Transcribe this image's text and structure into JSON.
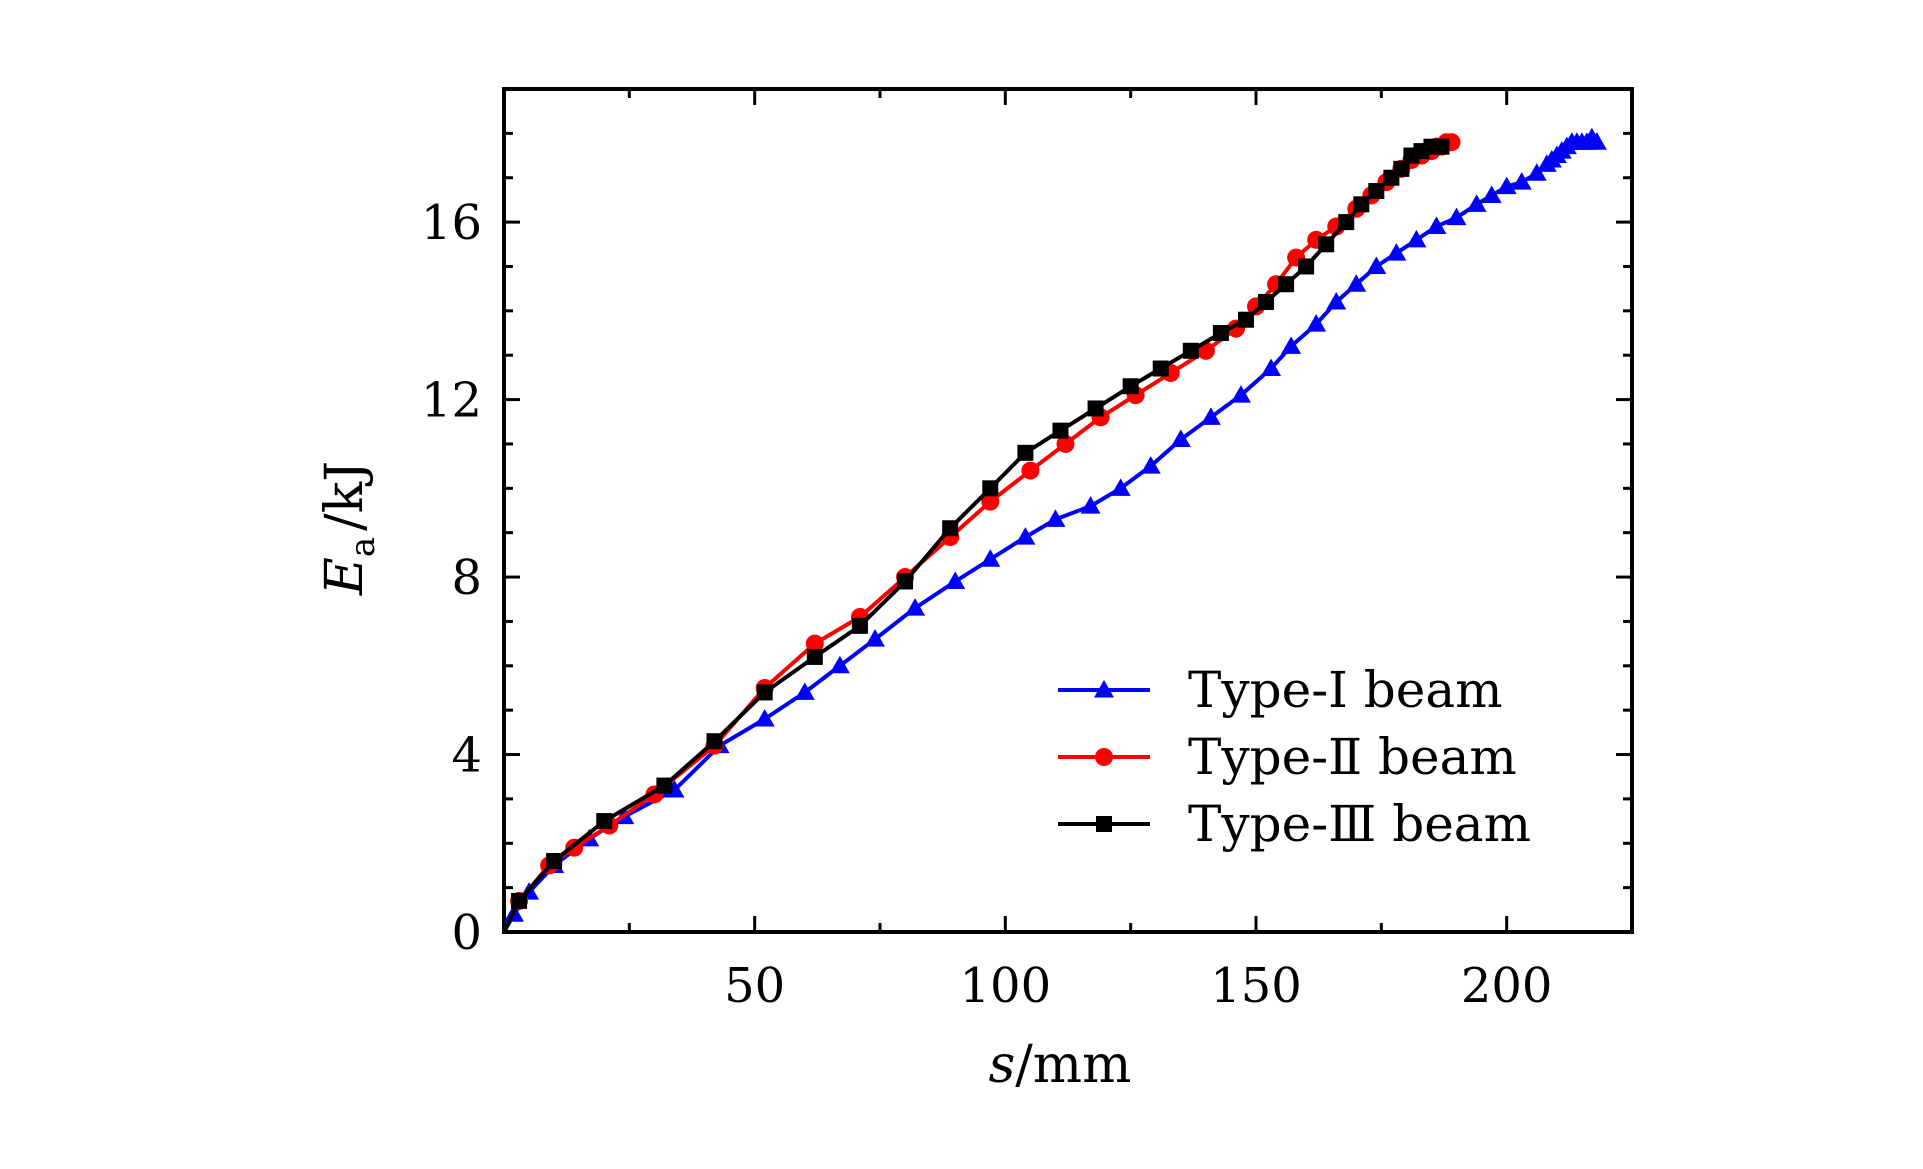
{
  "chart_data": {
    "type": "line",
    "title": "",
    "xlabel": {
      "var": "s",
      "unit": "/mm"
    },
    "ylabel": {
      "var": "E",
      "sub": "a",
      "unit": "/kJ"
    },
    "xlim": [
      0,
      225
    ],
    "ylim": [
      0,
      19
    ],
    "xticks": [
      50,
      100,
      150,
      200
    ],
    "xtick_labels": [
      "50",
      "100",
      "150",
      "200"
    ],
    "yticks": [
      0,
      4,
      8,
      12,
      16
    ],
    "ytick_labels": [
      "0",
      "4",
      "8",
      "12",
      "16"
    ],
    "grid": false,
    "legend_position": "lower-right",
    "series": [
      {
        "name": "Type-Ⅰ beam",
        "color": "#0000ff",
        "marker": "triangle",
        "x": [
          0,
          2,
          5,
          10,
          17,
          24,
          34,
          43,
          52,
          60,
          67,
          74,
          82,
          90,
          97,
          104,
          110,
          117,
          123,
          129,
          135,
          141,
          147,
          153,
          157,
          162,
          166,
          170,
          174,
          178,
          182,
          186,
          190,
          194,
          197,
          200,
          203,
          206,
          208,
          209,
          210,
          211,
          212,
          213,
          214,
          215,
          216,
          217,
          218
        ],
        "y": [
          0,
          0.4,
          0.9,
          1.5,
          2.1,
          2.6,
          3.2,
          4.2,
          4.8,
          5.4,
          6.0,
          6.6,
          7.3,
          7.9,
          8.4,
          8.9,
          9.3,
          9.6,
          10.0,
          10.5,
          11.1,
          11.6,
          12.1,
          12.7,
          13.2,
          13.7,
          14.2,
          14.6,
          15.0,
          15.3,
          15.6,
          15.9,
          16.1,
          16.4,
          16.6,
          16.8,
          16.9,
          17.1,
          17.3,
          17.4,
          17.5,
          17.6,
          17.7,
          17.8,
          17.8,
          17.8,
          17.8,
          17.9,
          17.8
        ]
      },
      {
        "name": "Type-Ⅱ beam",
        "color": "#ff0000",
        "marker": "circle",
        "x": [
          0,
          3,
          9,
          14,
          21,
          30,
          42,
          52,
          62,
          71,
          80,
          89,
          97,
          105,
          112,
          119,
          126,
          133,
          140,
          146,
          150,
          154,
          158,
          162,
          166,
          170,
          173,
          176,
          179,
          181,
          183,
          184,
          185,
          186,
          187,
          188,
          189
        ],
        "y": [
          0,
          0.7,
          1.5,
          1.9,
          2.4,
          3.1,
          4.2,
          5.5,
          6.5,
          7.1,
          8.0,
          8.9,
          9.7,
          10.4,
          11.0,
          11.6,
          12.1,
          12.6,
          13.1,
          13.6,
          14.1,
          14.6,
          15.2,
          15.6,
          15.9,
          16.3,
          16.6,
          16.9,
          17.2,
          17.4,
          17.5,
          17.6,
          17.6,
          17.7,
          17.7,
          17.8,
          17.8
        ]
      },
      {
        "name": "Type-Ⅲ beam",
        "color": "#000000",
        "marker": "square",
        "x": [
          0,
          3,
          10,
          20,
          32,
          42,
          52,
          62,
          71,
          80,
          89,
          97,
          104,
          111,
          118,
          125,
          131,
          137,
          143,
          148,
          152,
          156,
          160,
          164,
          168,
          171,
          174,
          177,
          179,
          181,
          183,
          185,
          187
        ],
        "y": [
          0,
          0.7,
          1.6,
          2.5,
          3.3,
          4.3,
          5.4,
          6.2,
          6.9,
          7.9,
          9.1,
          10.0,
          10.8,
          11.3,
          11.8,
          12.3,
          12.7,
          13.1,
          13.5,
          13.8,
          14.2,
          14.6,
          15.0,
          15.5,
          16.0,
          16.4,
          16.7,
          17.0,
          17.2,
          17.5,
          17.6,
          17.7,
          17.7
        ]
      }
    ]
  }
}
